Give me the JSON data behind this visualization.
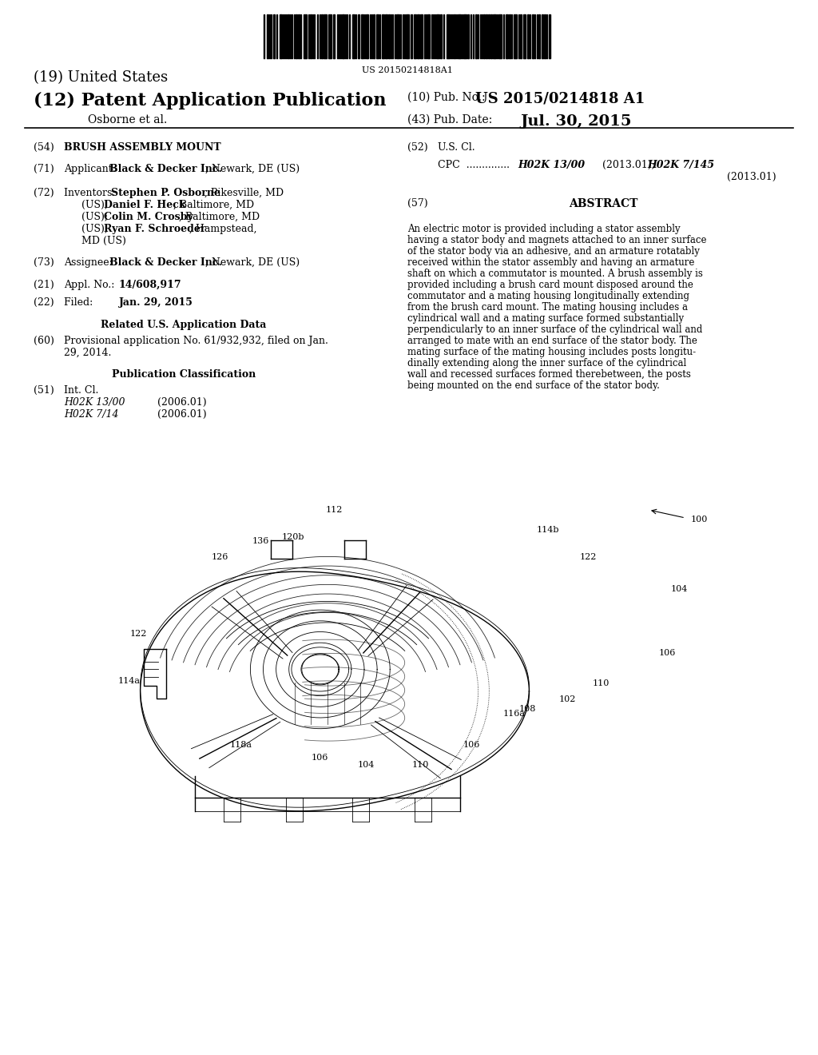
{
  "background_color": "#ffffff",
  "page_width": 10.24,
  "page_height": 13.2,
  "barcode_text": "US 20150214818A1",
  "country": "(19) United States",
  "doc_type": "(12) Patent Application Publication",
  "pub_no_label": "(10) Pub. No.:",
  "pub_no": "US 2015/0214818 A1",
  "inventors_label": "Osborne et al.",
  "pub_date_label": "(43) Pub. Date:",
  "pub_date": "Jul. 30, 2015",
  "related_header": "Related U.S. Application Data",
  "pub_class_header": "Publication Classification",
  "abstract_57_header": "ABSTRACT",
  "abstract_lines": [
    "An electric motor is provided including a stator assembly",
    "having a stator body and magnets attached to an inner surface",
    "of the stator body via an adhesive, and an armature rotatably",
    "received within the stator assembly and having an armature",
    "shaft on which a commutator is mounted. A brush assembly is",
    "provided including a brush card mount disposed around the",
    "commutator and a mating housing longitudinally extending",
    "from the brush card mount. The mating housing includes a",
    "cylindrical wall and a mating surface formed substantially",
    "perpendicularly to an inner surface of the cylindrical wall and",
    "arranged to mate with an end surface of the stator body. The",
    "mating surface of the mating housing includes posts longitu-",
    "dinally extending along the inner surface of the cylindrical",
    "wall and recessed surfaces formed therebetween, the posts",
    "being mounted on the end surface of the stator body."
  ],
  "ref_labels": [
    [
      "100",
      865,
      650,
      "left"
    ],
    [
      "112",
      418,
      638,
      "center"
    ],
    [
      "114b",
      672,
      663,
      "left"
    ],
    [
      "122",
      726,
      697,
      "left"
    ],
    [
      "104",
      840,
      737,
      "left"
    ],
    [
      "106",
      825,
      817,
      "left"
    ],
    [
      "110",
      742,
      855,
      "left"
    ],
    [
      "102",
      700,
      875,
      "left"
    ],
    [
      "108",
      650,
      887,
      "left"
    ],
    [
      "116a",
      630,
      893,
      "left"
    ],
    [
      "106",
      580,
      932,
      "left"
    ],
    [
      "110",
      516,
      957,
      "left"
    ],
    [
      "104",
      448,
      957,
      "left"
    ],
    [
      "106",
      390,
      948,
      "left"
    ],
    [
      "118a",
      288,
      932,
      "left"
    ],
    [
      "114a",
      148,
      852,
      "left"
    ],
    [
      "122",
      163,
      793,
      "left"
    ],
    [
      "126",
      265,
      697,
      "left"
    ],
    [
      "136",
      316,
      677,
      "left"
    ],
    [
      "120b",
      353,
      672,
      "left"
    ]
  ]
}
